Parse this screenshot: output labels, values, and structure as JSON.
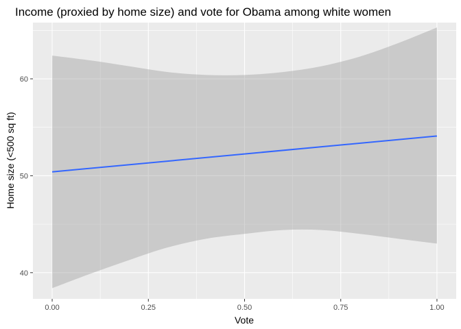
{
  "chart_data": {
    "type": "line",
    "title": "Income (proxied by home size) and vote for Obama among white women",
    "xlabel": "Vote",
    "ylabel": "Home size (<500 sq ft)",
    "xlim": [
      -0.05,
      1.05
    ],
    "ylim": [
      37.3,
      65.8
    ],
    "x_ticks": [
      0,
      0.25,
      0.5,
      0.75,
      1
    ],
    "x_tick_labels": [
      "0.00",
      "0.25",
      "0.50",
      "0.75",
      "1.00"
    ],
    "y_ticks": [
      40,
      50,
      60
    ],
    "y_tick_labels": [
      "40",
      "50",
      "60"
    ],
    "grid": true,
    "series": [
      {
        "x": [
          0,
          1
        ],
        "y": [
          50.4,
          54.1
        ],
        "color": "#3366FF"
      }
    ],
    "confidence_band": {
      "x": [
        0,
        0.1,
        0.2,
        0.3,
        0.4,
        0.5,
        0.6,
        0.7,
        0.8,
        0.9,
        1.0
      ],
      "upper": [
        62.4,
        61.9,
        61.3,
        60.7,
        60.4,
        60.4,
        60.7,
        61.3,
        62.3,
        63.7,
        65.3
      ],
      "lower": [
        38.4,
        39.9,
        41.3,
        42.6,
        43.5,
        44.0,
        44.4,
        44.4,
        44.0,
        43.5,
        43.0
      ],
      "color": "#999999"
    },
    "colors": {
      "panel_background": "#EBEBEB",
      "grid": "#FFFFFF",
      "line": "#3366FF",
      "band": "#999999"
    }
  }
}
